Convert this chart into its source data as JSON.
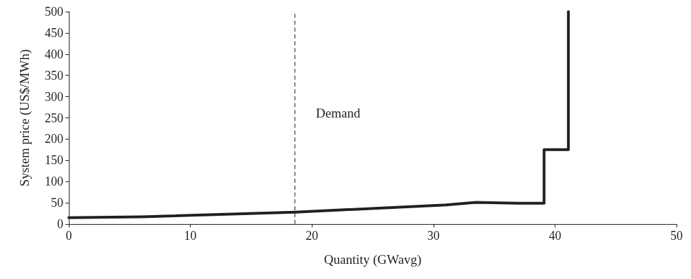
{
  "chart_data": {
    "type": "line",
    "xlabel": "Quantity (GWavg)",
    "ylabel": "System price (US$/MWh)",
    "x": [
      0,
      6,
      18.6,
      31,
      33.5,
      37,
      39.1,
      39.1,
      41.1,
      41.1
    ],
    "values": [
      15,
      17,
      28,
      45,
      51,
      49,
      49,
      175,
      175,
      500
    ],
    "color": "#231f20",
    "marker": "none",
    "line_style": "solid",
    "grid": false,
    "xlim": [
      0,
      50
    ],
    "xticks": [
      0,
      10,
      20,
      30,
      40,
      50
    ],
    "ylim": [
      0,
      500
    ],
    "yticks": [
      0,
      50,
      100,
      150,
      200,
      250,
      300,
      350,
      400,
      450,
      500
    ],
    "ref_lines": [
      {
        "axis": "x",
        "value": 18.6,
        "label": "Demand",
        "color": "#231f20",
        "line_style": "dashed"
      }
    ]
  }
}
